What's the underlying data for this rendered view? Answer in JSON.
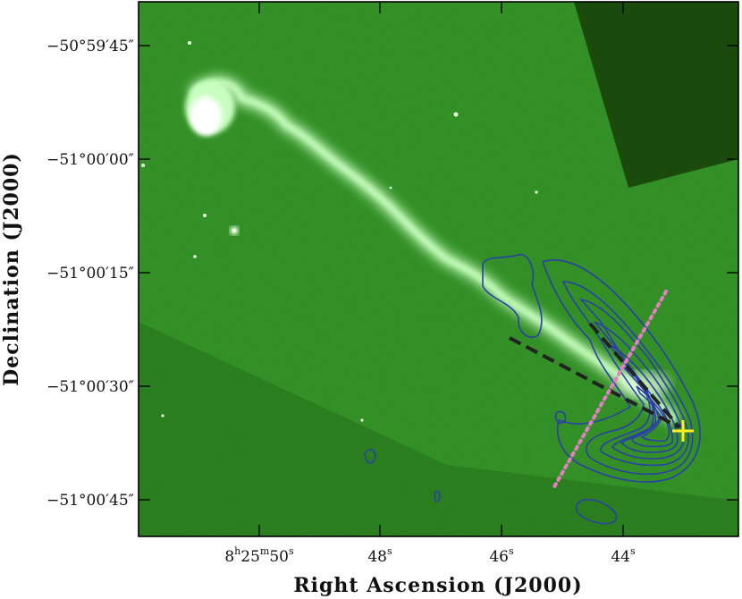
{
  "figure": {
    "xlabel": "Right Ascension (J2000)",
    "ylabel": "Declination (J2000)",
    "x_ticks": [
      {
        "h": "8",
        "m": "25",
        "s": "50",
        "hs": "h",
        "ms": "m",
        "ss": "s"
      },
      {
        "s": "48",
        "ss": "s"
      },
      {
        "s": "46",
        "ss": "s"
      },
      {
        "s": "44",
        "ss": "s"
      }
    ],
    "y_ticks": [
      "−50°59′45″",
      "−51°00′00″",
      "−51°00′15″",
      "−51°00′30″",
      "−51°00′45″"
    ],
    "colors": {
      "image_base": "#2e8a1d",
      "jet_emission": "#c8ffc0",
      "masked_region": "#1a4a0c",
      "contours": "#2b3fa6",
      "dashed_lines": "#222222",
      "dotted_line": "#e47fc4",
      "source_marker": "#ffee22"
    },
    "overlays": {
      "contour_series": "contours",
      "outflow_axes": "dashed-lines",
      "perpendicular_axis": "dotted-line",
      "source_marker_icon": "plus-marker-icon"
    }
  }
}
